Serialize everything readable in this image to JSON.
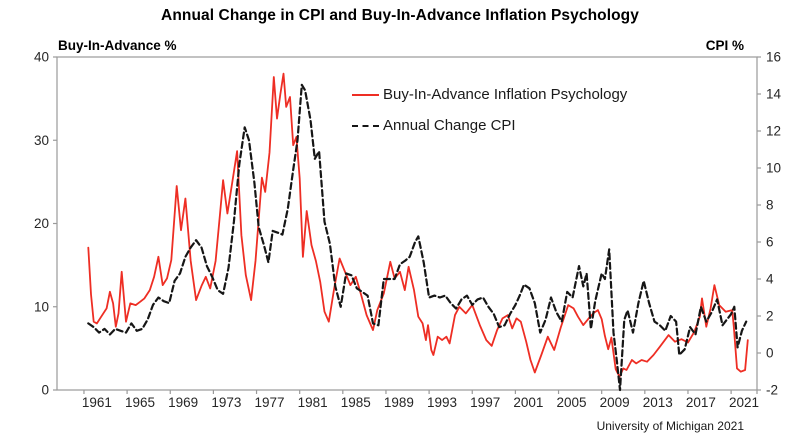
{
  "title": "Annual Change in CPI and Buy-In-Advance Inflation Psychology",
  "left_axis_label": "Buy-In-Advance %",
  "right_axis_label": "CPI %",
  "source": "University of Michigan 2021",
  "legend": [
    {
      "label": "Buy-In-Advance Inflation Psychology",
      "color": "#ee2e24",
      "style": "solid"
    },
    {
      "label": "Annual Change CPI",
      "color": "#161616",
      "style": "dashed"
    }
  ],
  "chart_data": {
    "type": "line",
    "title": "Annual Change in CPI and Buy-In-Advance Inflation Psychology",
    "grid": false,
    "legend_position": "top-center-inside",
    "axis_color": "#9a9a9a",
    "tick_text_color": "#262626",
    "x_axis": {
      "range": [
        1957.3,
        2022.2
      ],
      "ticks": [
        1961,
        1965,
        1969,
        1973,
        1977,
        1981,
        1985,
        1989,
        1993,
        1997,
        2001,
        2005,
        2009,
        2013,
        2017,
        2021
      ]
    },
    "left_y_axis": {
      "label": "Buy-In-Advance %",
      "range": [
        0,
        40
      ],
      "ticks": [
        0,
        10,
        20,
        30,
        40
      ]
    },
    "right_y_axis": {
      "label": "CPI %",
      "range": [
        -2,
        16
      ],
      "ticks": [
        -2,
        0,
        2,
        4,
        6,
        8,
        10,
        12,
        14,
        16
      ]
    },
    "source": "University of Michigan 2021",
    "series": [
      {
        "name": "Buy-In-Advance Inflation Psychology",
        "axis": "left",
        "color": "#ee2e24",
        "line_style": "solid",
        "points": [
          [
            1960.2,
            17.1
          ],
          [
            1960.45,
            11.5
          ],
          [
            1960.7,
            8.2
          ],
          [
            1961.0,
            8.0
          ],
          [
            1961.4,
            8.8
          ],
          [
            1961.9,
            9.8
          ],
          [
            1962.2,
            11.8
          ],
          [
            1962.5,
            10.4
          ],
          [
            1962.75,
            7.6
          ],
          [
            1963.0,
            9.2
          ],
          [
            1963.3,
            14.2
          ],
          [
            1963.7,
            8.2
          ],
          [
            1964.1,
            10.4
          ],
          [
            1964.6,
            10.2
          ],
          [
            1965.0,
            10.6
          ],
          [
            1965.4,
            11.0
          ],
          [
            1965.9,
            12.0
          ],
          [
            1966.3,
            13.6
          ],
          [
            1966.7,
            16.0
          ],
          [
            1967.1,
            12.6
          ],
          [
            1967.5,
            13.4
          ],
          [
            1967.9,
            15.6
          ],
          [
            1968.4,
            24.5
          ],
          [
            1968.8,
            19.2
          ],
          [
            1969.2,
            23.0
          ],
          [
            1969.7,
            15.5
          ],
          [
            1970.2,
            10.8
          ],
          [
            1970.7,
            12.5
          ],
          [
            1971.1,
            13.6
          ],
          [
            1971.5,
            12.2
          ],
          [
            1972.0,
            15.5
          ],
          [
            1972.4,
            21.0
          ],
          [
            1972.7,
            25.2
          ],
          [
            1973.1,
            21.2
          ],
          [
            1973.5,
            24.5
          ],
          [
            1974.0,
            28.7
          ],
          [
            1974.4,
            18.6
          ],
          [
            1974.8,
            13.8
          ],
          [
            1975.3,
            10.8
          ],
          [
            1975.7,
            15.5
          ],
          [
            1976.0,
            20.5
          ],
          [
            1976.3,
            25.5
          ],
          [
            1976.6,
            23.8
          ],
          [
            1977.0,
            28.5
          ],
          [
            1977.4,
            37.6
          ],
          [
            1977.7,
            32.6
          ],
          [
            1978.0,
            35.5
          ],
          [
            1978.3,
            38.0
          ],
          [
            1978.55,
            34.0
          ],
          [
            1978.9,
            35.2
          ],
          [
            1979.2,
            29.4
          ],
          [
            1979.5,
            30.4
          ],
          [
            1979.8,
            25.4
          ],
          [
            1980.1,
            16.0
          ],
          [
            1980.45,
            21.5
          ],
          [
            1980.9,
            17.4
          ],
          [
            1981.3,
            15.5
          ],
          [
            1981.7,
            13.0
          ],
          [
            1982.1,
            9.4
          ],
          [
            1982.5,
            8.2
          ],
          [
            1983.0,
            12.2
          ],
          [
            1983.5,
            15.8
          ],
          [
            1984.0,
            14.2
          ],
          [
            1984.5,
            12.6
          ],
          [
            1985.0,
            13.6
          ],
          [
            1985.5,
            11.4
          ],
          [
            1986.0,
            9.0
          ],
          [
            1986.6,
            7.2
          ],
          [
            1987.0,
            9.6
          ],
          [
            1987.6,
            11.6
          ],
          [
            1988.2,
            15.4
          ],
          [
            1988.6,
            13.4
          ],
          [
            1989.1,
            14.2
          ],
          [
            1989.55,
            12.0
          ],
          [
            1989.9,
            14.8
          ],
          [
            1990.4,
            12.0
          ],
          [
            1990.8,
            8.8
          ],
          [
            1991.2,
            8.0
          ],
          [
            1991.5,
            6.0
          ],
          [
            1991.7,
            7.8
          ],
          [
            1992.0,
            4.8
          ],
          [
            1992.2,
            4.2
          ],
          [
            1992.6,
            6.4
          ],
          [
            1993.0,
            6.0
          ],
          [
            1993.4,
            6.4
          ],
          [
            1993.7,
            5.6
          ],
          [
            1994.2,
            9.0
          ],
          [
            1994.6,
            10.0
          ],
          [
            1995.2,
            9.2
          ],
          [
            1995.8,
            10.2
          ],
          [
            1996.5,
            7.8
          ],
          [
            1997.1,
            6.0
          ],
          [
            1997.6,
            5.3
          ],
          [
            1998.1,
            7.2
          ],
          [
            1998.6,
            8.6
          ],
          [
            1999.1,
            9.0
          ],
          [
            1999.5,
            7.4
          ],
          [
            1999.9,
            8.6
          ],
          [
            2000.3,
            8.2
          ],
          [
            2000.8,
            5.8
          ],
          [
            2001.2,
            3.6
          ],
          [
            2001.6,
            2.1
          ],
          [
            2002.2,
            4.2
          ],
          [
            2002.8,
            6.4
          ],
          [
            2003.4,
            4.8
          ],
          [
            2004.0,
            7.5
          ],
          [
            2004.7,
            10.2
          ],
          [
            2005.2,
            9.8
          ],
          [
            2005.6,
            8.8
          ],
          [
            2006.1,
            7.8
          ],
          [
            2006.6,
            8.6
          ],
          [
            2007.1,
            9.3
          ],
          [
            2007.45,
            9.6
          ],
          [
            2007.8,
            8.5
          ],
          [
            2008.1,
            6.5
          ],
          [
            2008.4,
            4.9
          ],
          [
            2008.7,
            6.3
          ],
          [
            2009.1,
            2.5
          ],
          [
            2009.45,
            1.6
          ],
          [
            2009.8,
            2.6
          ],
          [
            2010.1,
            2.4
          ],
          [
            2010.6,
            3.6
          ],
          [
            2011.0,
            3.2
          ],
          [
            2011.5,
            3.6
          ],
          [
            2012.0,
            3.4
          ],
          [
            2012.6,
            4.2
          ],
          [
            2013.2,
            5.2
          ],
          [
            2014.0,
            6.6
          ],
          [
            2014.6,
            5.8
          ],
          [
            2015.2,
            6.1
          ],
          [
            2015.8,
            5.7
          ],
          [
            2016.4,
            7.0
          ],
          [
            2016.9,
            8.8
          ],
          [
            2017.1,
            11.0
          ],
          [
            2017.5,
            7.6
          ],
          [
            2017.9,
            9.8
          ],
          [
            2018.25,
            12.6
          ],
          [
            2018.7,
            10.2
          ],
          [
            2019.3,
            9.4
          ],
          [
            2019.9,
            9.6
          ],
          [
            2020.05,
            7.6
          ],
          [
            2020.35,
            2.6
          ],
          [
            2020.7,
            2.2
          ],
          [
            2021.1,
            2.4
          ],
          [
            2021.35,
            6.0
          ]
        ]
      },
      {
        "name": "Annual Change CPI",
        "axis": "right",
        "color": "#161616",
        "line_style": "dashed",
        "points": [
          [
            1960.2,
            1.6
          ],
          [
            1960.7,
            1.4
          ],
          [
            1961.2,
            1.1
          ],
          [
            1961.7,
            1.3
          ],
          [
            1962.2,
            1.0
          ],
          [
            1962.7,
            1.3
          ],
          [
            1963.2,
            1.2
          ],
          [
            1963.7,
            1.1
          ],
          [
            1964.2,
            1.6
          ],
          [
            1964.7,
            1.2
          ],
          [
            1965.2,
            1.3
          ],
          [
            1965.7,
            1.8
          ],
          [
            1966.2,
            2.6
          ],
          [
            1966.7,
            3.0
          ],
          [
            1967.2,
            2.8
          ],
          [
            1967.7,
            2.7
          ],
          [
            1968.2,
            3.9
          ],
          [
            1968.7,
            4.3
          ],
          [
            1969.2,
            5.2
          ],
          [
            1969.7,
            5.7
          ],
          [
            1970.2,
            6.1
          ],
          [
            1970.7,
            5.7
          ],
          [
            1971.2,
            4.7
          ],
          [
            1971.7,
            4.1
          ],
          [
            1972.2,
            3.4
          ],
          [
            1972.7,
            3.2
          ],
          [
            1973.2,
            4.6
          ],
          [
            1973.7,
            7.1
          ],
          [
            1974.2,
            10.2
          ],
          [
            1974.7,
            12.2
          ],
          [
            1975.1,
            11.5
          ],
          [
            1975.6,
            9.2
          ],
          [
            1976.0,
            6.8
          ],
          [
            1976.5,
            5.8
          ],
          [
            1976.9,
            4.9
          ],
          [
            1977.3,
            6.6
          ],
          [
            1977.8,
            6.5
          ],
          [
            1978.2,
            6.4
          ],
          [
            1978.7,
            7.8
          ],
          [
            1979.2,
            9.9
          ],
          [
            1979.6,
            11.5
          ],
          [
            1980.0,
            14.5
          ],
          [
            1980.3,
            14.2
          ],
          [
            1980.8,
            12.6
          ],
          [
            1981.2,
            10.5
          ],
          [
            1981.6,
            10.9
          ],
          [
            1982.1,
            7.1
          ],
          [
            1982.6,
            5.9
          ],
          [
            1983.1,
            3.6
          ],
          [
            1983.6,
            2.5
          ],
          [
            1984.1,
            4.3
          ],
          [
            1984.6,
            4.2
          ],
          [
            1985.1,
            3.5
          ],
          [
            1985.6,
            3.3
          ],
          [
            1986.1,
            3.1
          ],
          [
            1986.6,
            1.6
          ],
          [
            1987.1,
            1.5
          ],
          [
            1987.6,
            4.0
          ],
          [
            1988.1,
            4.0
          ],
          [
            1988.6,
            4.0
          ],
          [
            1989.1,
            4.8
          ],
          [
            1989.6,
            5.0
          ],
          [
            1990.0,
            5.2
          ],
          [
            1990.5,
            6.0
          ],
          [
            1990.8,
            6.3
          ],
          [
            1991.3,
            4.9
          ],
          [
            1991.8,
            3.0
          ],
          [
            1992.3,
            3.1
          ],
          [
            1992.8,
            3.0
          ],
          [
            1993.3,
            3.1
          ],
          [
            1993.8,
            2.7
          ],
          [
            1994.3,
            2.4
          ],
          [
            1994.8,
            2.9
          ],
          [
            1995.3,
            3.1
          ],
          [
            1995.8,
            2.6
          ],
          [
            1996.3,
            2.9
          ],
          [
            1996.8,
            3.0
          ],
          [
            1997.3,
            2.5
          ],
          [
            1997.8,
            2.1
          ],
          [
            1998.3,
            1.4
          ],
          [
            1998.8,
            1.5
          ],
          [
            1999.3,
            2.1
          ],
          [
            1999.8,
            2.6
          ],
          [
            2000.2,
            3.1
          ],
          [
            2000.6,
            3.7
          ],
          [
            2001.1,
            3.5
          ],
          [
            2001.6,
            2.7
          ],
          [
            2002.1,
            1.1
          ],
          [
            2002.6,
            1.8
          ],
          [
            2003.1,
            3.0
          ],
          [
            2003.6,
            2.2
          ],
          [
            2004.1,
            1.7
          ],
          [
            2004.6,
            3.3
          ],
          [
            2005.1,
            3.0
          ],
          [
            2005.7,
            4.7
          ],
          [
            2006.1,
            3.6
          ],
          [
            2006.4,
            4.3
          ],
          [
            2006.8,
            1.3
          ],
          [
            2007.2,
            2.8
          ],
          [
            2007.8,
            4.3
          ],
          [
            2008.1,
            4.0
          ],
          [
            2008.5,
            5.6
          ],
          [
            2008.9,
            1.1
          ],
          [
            2009.2,
            -0.4
          ],
          [
            2009.5,
            -2.0
          ],
          [
            2009.9,
            1.8
          ],
          [
            2010.2,
            2.3
          ],
          [
            2010.7,
            1.1
          ],
          [
            2011.2,
            2.7
          ],
          [
            2011.7,
            3.9
          ],
          [
            2012.2,
            2.7
          ],
          [
            2012.7,
            1.7
          ],
          [
            2013.2,
            1.5
          ],
          [
            2013.7,
            1.2
          ],
          [
            2014.2,
            2.0
          ],
          [
            2014.7,
            1.7
          ],
          [
            2015.0,
            -0.1
          ],
          [
            2015.5,
            0.2
          ],
          [
            2016.0,
            1.4
          ],
          [
            2016.5,
            1.0
          ],
          [
            2017.0,
            2.5
          ],
          [
            2017.5,
            1.7
          ],
          [
            2018.0,
            2.2
          ],
          [
            2018.5,
            2.9
          ],
          [
            2019.0,
            1.5
          ],
          [
            2019.4,
            1.8
          ],
          [
            2019.8,
            2.1
          ],
          [
            2020.1,
            2.5
          ],
          [
            2020.4,
            0.3
          ],
          [
            2020.8,
            1.2
          ],
          [
            2021.2,
            1.7
          ]
        ]
      }
    ]
  }
}
